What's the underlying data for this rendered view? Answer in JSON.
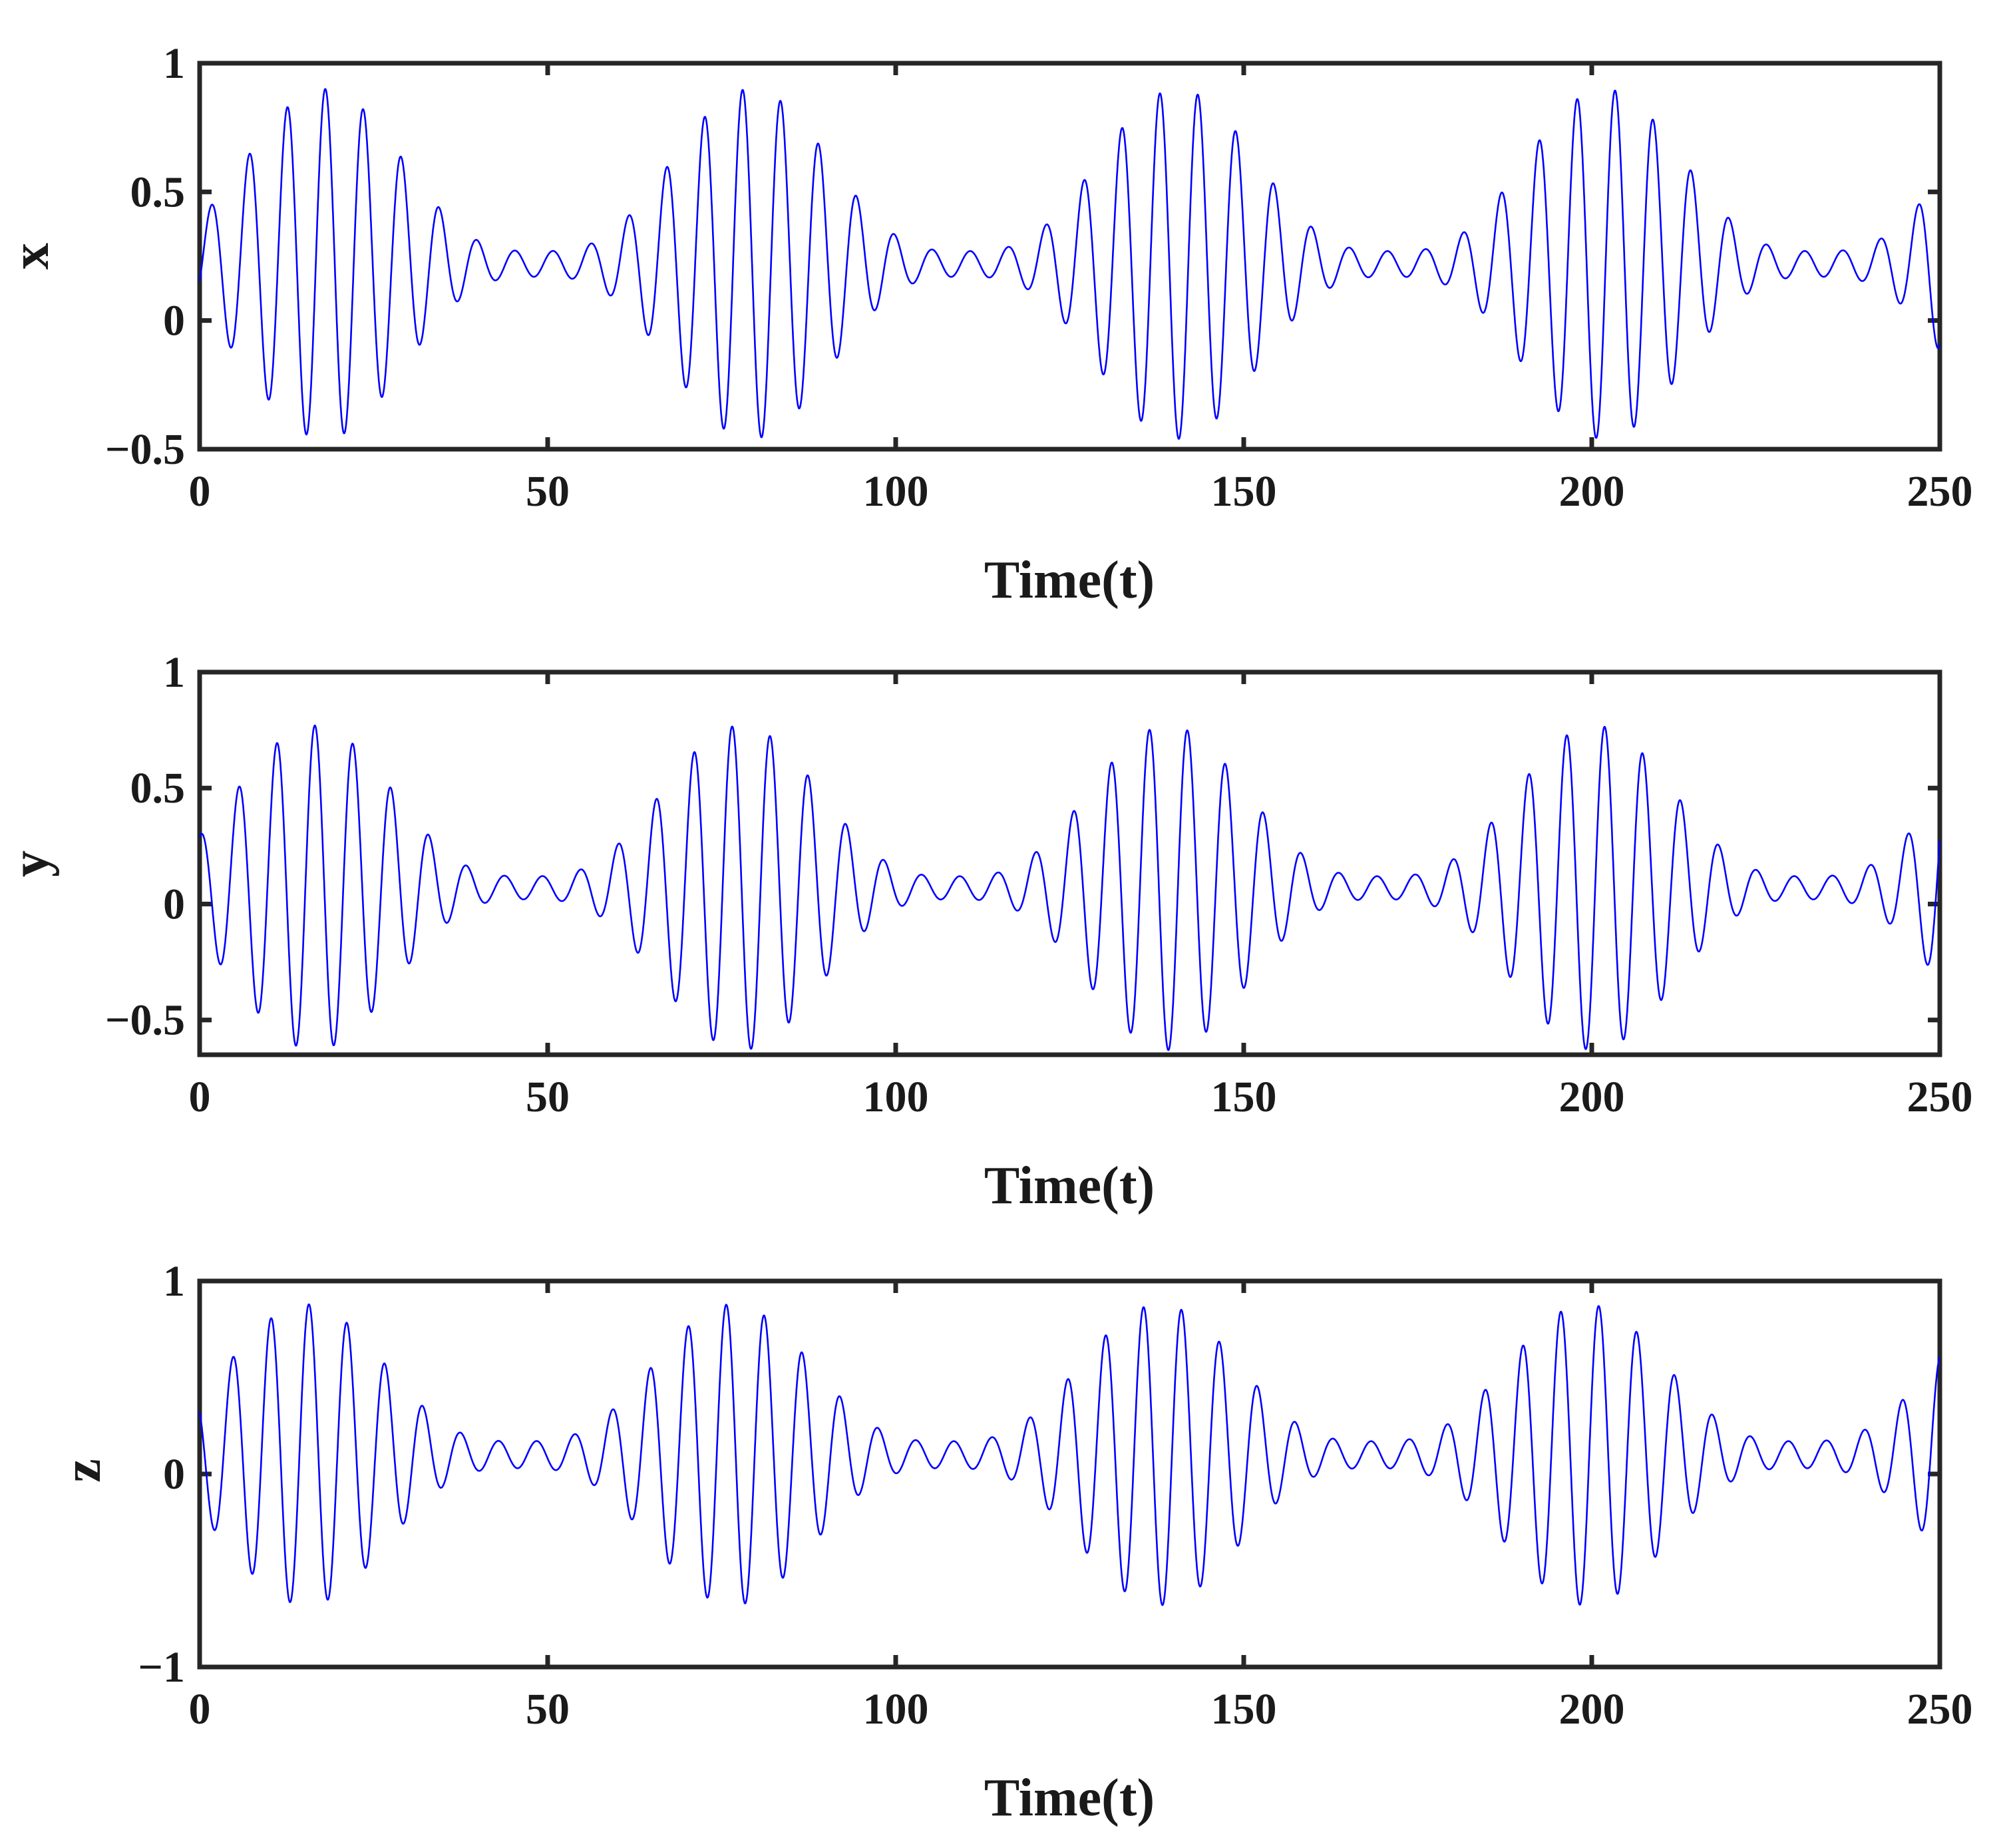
{
  "figure": {
    "line_color": "#0000ff",
    "axis_color": "#262626"
  },
  "chart_data": [
    {
      "type": "line",
      "name_of_panel": "x",
      "xlabel": "Time(t)",
      "ylabel": "x",
      "xlim": [
        0,
        250
      ],
      "ylim": [
        -0.5,
        1
      ],
      "xticks": [
        0,
        50,
        100,
        150,
        200,
        250
      ],
      "xtick_labels": [
        "0",
        "50",
        "100",
        "150",
        "200",
        "250"
      ],
      "yticks": [
        -0.5,
        0,
        0.5,
        1
      ],
      "ytick_labels": [
        "−0.5",
        "0",
        "0.5",
        "1"
      ],
      "grid": false,
      "legend": "none",
      "signal": {
        "carrier_period": 5.45,
        "beat_period": 61.3,
        "max_amplitude": 0.68,
        "min_amplitude": 0.05,
        "offset": 0.22,
        "first_peak_t": 1.7,
        "x_start": 0,
        "x_end": 250,
        "envelope_peaks": [
          {
            "t": 17.9,
            "value": 0.92
          },
          {
            "t": 91.0,
            "value": 0.75
          },
          {
            "t": 153.1,
            "value": 0.75
          },
          {
            "t": 214.6,
            "value": 0.72
          }
        ],
        "envelope_troughs": [
          {
            "t": 10.1,
            "value": -0.42
          },
          {
            "t": 88.5,
            "value": -0.42
          },
          {
            "t": 150.5,
            "value": -0.42
          },
          {
            "t": 212.2,
            "value": -0.4
          }
        ]
      }
    },
    {
      "type": "line",
      "name_of_panel": "y",
      "xlabel": "Time(t)",
      "ylabel": "y",
      "xlim": [
        0,
        250
      ],
      "ylim": [
        -0.65,
        1
      ],
      "xticks": [
        0,
        50,
        100,
        150,
        200,
        250
      ],
      "xtick_labels": [
        "0",
        "50",
        "100",
        "150",
        "200",
        "250"
      ],
      "yticks": [
        -0.5,
        0,
        0.5,
        1
      ],
      "ytick_labels": [
        "−0.5",
        "0",
        "0.5",
        "1"
      ],
      "grid": false,
      "legend": "none",
      "signal": {
        "carrier_period": 5.45,
        "beat_period": 61.3,
        "max_amplitude": 0.7,
        "min_amplitude": 0.05,
        "offset": 0.07,
        "first_peak_t": 0.2,
        "x_start": 0,
        "x_end": 250,
        "envelope_peaks": [
          {
            "t": 16.5,
            "value": 0.78
          },
          {
            "t": 89.6,
            "value": 0.7
          },
          {
            "t": 151.4,
            "value": 0.7
          },
          {
            "t": 213.1,
            "value": 0.68
          }
        ],
        "envelope_troughs": [
          {
            "t": 14.0,
            "value": -0.64
          },
          {
            "t": 92.4,
            "value": -0.58
          },
          {
            "t": 154.0,
            "value": -0.59
          },
          {
            "t": 215.8,
            "value": -0.59
          }
        ]
      }
    },
    {
      "type": "line",
      "name_of_panel": "z",
      "xlabel": "Time(t)",
      "ylabel": "z",
      "xlim": [
        0,
        250
      ],
      "ylim": [
        -1,
        1
      ],
      "xticks": [
        0,
        50,
        100,
        150,
        200,
        250
      ],
      "xtick_labels": [
        "0",
        "50",
        "100",
        "150",
        "200",
        "250"
      ],
      "yticks": [
        -1,
        0,
        1
      ],
      "ytick_labels": [
        "−1",
        "0",
        "1"
      ],
      "grid": false,
      "legend": "none",
      "signal": {
        "carrier_period": 5.45,
        "beat_period": 61.3,
        "max_amplitude": 0.78,
        "min_amplitude": 0.07,
        "offset": 0.1,
        "first_peak_t": 4.8,
        "x_start": 0,
        "x_end": 250,
        "envelope_peaks": [
          {
            "t": 15.3,
            "value": 0.88
          },
          {
            "t": 88.7,
            "value": 0.82
          },
          {
            "t": 150.4,
            "value": 0.81
          },
          {
            "t": 217.3,
            "value": 0.78
          }
        ],
        "envelope_troughs": [
          {
            "t": 18.1,
            "value": -0.7
          },
          {
            "t": 91.4,
            "value": -0.67
          },
          {
            "t": 153.1,
            "value": -0.67
          },
          {
            "t": 214.6,
            "value": -0.67
          }
        ]
      }
    }
  ]
}
